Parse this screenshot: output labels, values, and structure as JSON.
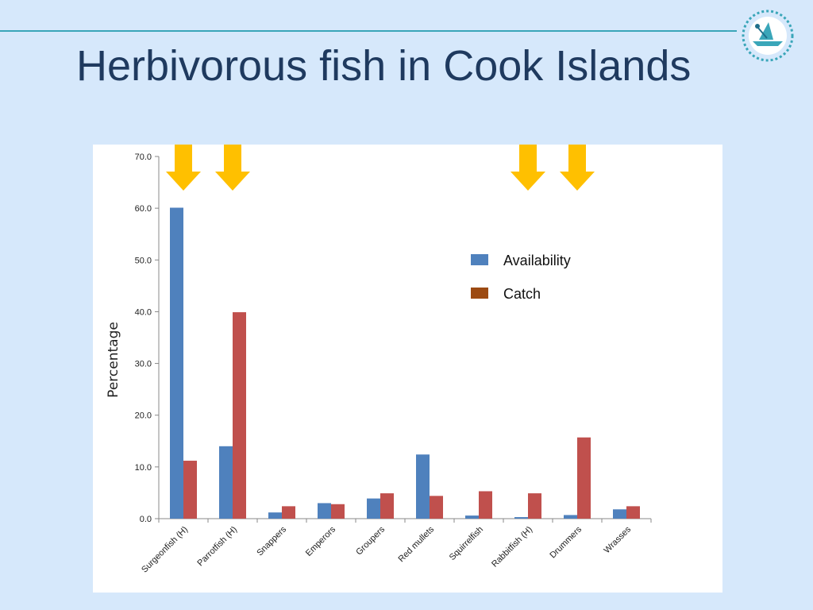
{
  "slide": {
    "title": "Herbivorous fish in Cook Islands"
  },
  "colors": {
    "availability": "#4f81bd",
    "catch": "#c0504d",
    "catch_legend": "#9c4a12",
    "arrow": "#ffc000",
    "rule": "#3aa6b9",
    "title": "#1f3a5f"
  },
  "icons": {
    "logo": "circular-boat-logo-icon",
    "arrow": "down-arrow-icon"
  },
  "chart_data": {
    "type": "bar",
    "ylabel": "Percentage",
    "ylim": [
      0,
      70
    ],
    "yticks": [
      "0.0",
      "10.0",
      "20.0",
      "30.0",
      "40.0",
      "50.0",
      "60.0",
      "70.0"
    ],
    "categories": [
      "Surgeonfish (H)",
      "Parrotfish (H)",
      "Snappers",
      "Emperors",
      "Groupers",
      "Red mullets",
      "Squirrelfish",
      "Rabbitfish (H)",
      "Drummers",
      "Wrasses"
    ],
    "series": [
      {
        "name": "Availability",
        "values": [
          60.1,
          14.0,
          1.2,
          3.0,
          3.9,
          12.4,
          0.6,
          0.3,
          0.7,
          1.8
        ]
      },
      {
        "name": "Catch",
        "values": [
          11.2,
          39.9,
          2.4,
          2.8,
          4.9,
          4.4,
          5.3,
          4.9,
          15.7,
          2.4
        ]
      }
    ],
    "highlighted_categories": [
      "Surgeonfish (H)",
      "Parrotfish (H)",
      "Rabbitfish (H)",
      "Drummers"
    ],
    "legend_position": "right"
  }
}
